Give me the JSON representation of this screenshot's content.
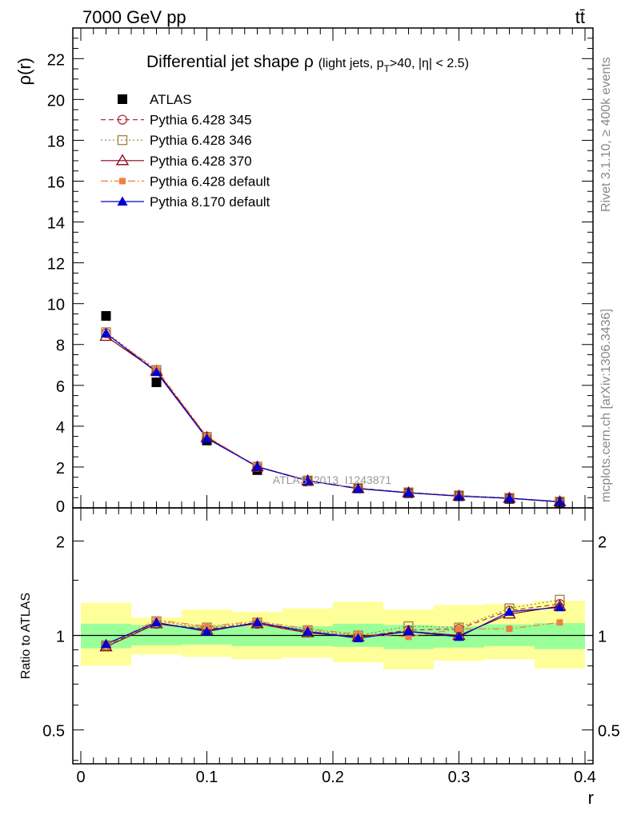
{
  "header": {
    "left": "7000 GeV pp",
    "right": "tt̄"
  },
  "side_labels": {
    "rivet": "Rivet 3.1.10, ≥ 400k events",
    "mcplots": "mcplots.cern.ch [arXiv:1306.3436]"
  },
  "watermark": "ATLAS_2013_I1243871",
  "title": {
    "main": "Differential jet shape ρ",
    "sub_pre": "(light jets, p",
    "sub_T": "T",
    "sub_post": ">40, |η| < 2.5)"
  },
  "colors": {
    "data": "#000000",
    "p345": "#b03040",
    "p346": "#a08040",
    "p370": "#8b0010",
    "p6def": "#f08040",
    "p8def": "#0000d0",
    "band_inner": "#99ff99",
    "band_outer": "#ffff99"
  },
  "chart_data": [
    {
      "type": "line",
      "panel": "main",
      "ylabel": "ρ(r)",
      "xlabel": "",
      "xlim": [
        0,
        0.4
      ],
      "ylim": [
        0,
        23.5
      ],
      "yticks": [
        0,
        2,
        4,
        6,
        8,
        10,
        12,
        14,
        16,
        18,
        20,
        22
      ],
      "ytick_labels": [
        "0",
        "2",
        "4",
        "6",
        "8",
        "10",
        "12",
        "14",
        "16",
        "18",
        "20",
        "22"
      ],
      "x": [
        0.02,
        0.06,
        0.1,
        0.14,
        0.18,
        0.22,
        0.26,
        0.3,
        0.34,
        0.38
      ],
      "legend_position": "top-left",
      "series": [
        {
          "name": "ATLAS",
          "key": "data",
          "marker": "square",
          "values": [
            9.4,
            6.15,
            3.3,
            1.85,
            1.3,
            0.95,
            0.72,
            0.57,
            0.44,
            0.25
          ]
        },
        {
          "name": "Pythia 6.428 345",
          "key": "p345",
          "marker": "circle-open",
          "dash": "6,4",
          "values": [
            8.55,
            6.7,
            3.45,
            2.0,
            1.33,
            0.97,
            0.75,
            0.6,
            0.48,
            0.3
          ]
        },
        {
          "name": "Pythia 6.428 346",
          "key": "p346",
          "marker": "square-open",
          "dash": "2,3",
          "values": [
            8.6,
            6.75,
            3.48,
            2.02,
            1.34,
            0.97,
            0.76,
            0.61,
            0.49,
            0.31
          ]
        },
        {
          "name": "Pythia 6.428 370",
          "key": "p370",
          "marker": "triangle-open",
          "dash": "",
          "values": [
            8.4,
            6.7,
            3.45,
            2.01,
            1.33,
            0.95,
            0.74,
            0.58,
            0.47,
            0.3
          ]
        },
        {
          "name": "Pythia 6.428 default",
          "key": "p6def",
          "marker": "square-small",
          "dash": "9,3,2,3",
          "values": [
            8.5,
            6.8,
            3.5,
            2.03,
            1.35,
            0.97,
            0.73,
            0.6,
            0.46,
            0.28
          ]
        },
        {
          "name": "Pythia 8.170 default",
          "key": "p8def",
          "marker": "triangle",
          "dash": "",
          "values": [
            8.55,
            6.65,
            3.4,
            2.02,
            1.33,
            0.94,
            0.74,
            0.57,
            0.47,
            0.3
          ]
        }
      ]
    },
    {
      "type": "line",
      "panel": "ratio",
      "ylabel": "Ratio to ATLAS",
      "xlabel": "r",
      "xlim": [
        0,
        0.4
      ],
      "ylim": [
        0.39,
        2.55
      ],
      "scale": "log",
      "xticks": [
        0,
        0.1,
        0.2,
        0.3,
        0.4
      ],
      "xtick_labels": [
        "0",
        "0.1",
        "0.2",
        "0.3",
        "0.4"
      ],
      "yticks": [
        0.5,
        1,
        2
      ],
      "ytick_labels": [
        "0.5",
        "1",
        "2"
      ],
      "x": [
        0.02,
        0.06,
        0.1,
        0.14,
        0.18,
        0.22,
        0.26,
        0.3,
        0.34,
        0.38
      ],
      "band_edges": [
        0.0,
        0.04,
        0.08,
        0.12,
        0.16,
        0.2,
        0.24,
        0.28,
        0.32,
        0.36,
        0.4
      ],
      "band_inner_low": [
        0.91,
        0.93,
        0.935,
        0.925,
        0.925,
        0.92,
        0.905,
        0.915,
        0.925,
        0.905
      ],
      "band_inner_high": [
        1.09,
        1.08,
        1.075,
        1.07,
        1.07,
        1.09,
        1.08,
        1.07,
        1.085,
        1.095
      ],
      "band_outer_low": [
        0.8,
        0.87,
        0.855,
        0.84,
        0.85,
        0.82,
        0.78,
        0.83,
        0.84,
        0.785
      ],
      "band_outer_high": [
        1.27,
        1.14,
        1.21,
        1.19,
        1.22,
        1.28,
        1.21,
        1.25,
        1.26,
        1.29
      ],
      "series": [
        {
          "name": "Pythia 6.428 345",
          "key": "p345",
          "marker": "circle-open",
          "dash": "6,4",
          "values": [
            0.93,
            1.09,
            1.05,
            1.09,
            1.03,
            0.99,
            1.04,
            1.05,
            1.2,
            1.26
          ]
        },
        {
          "name": "Pythia 6.428 346",
          "key": "p346",
          "marker": "square-open",
          "dash": "2,3",
          "values": [
            0.93,
            1.11,
            1.06,
            1.1,
            1.04,
            1.0,
            1.07,
            1.06,
            1.22,
            1.3
          ]
        },
        {
          "name": "Pythia 6.428 370",
          "key": "p370",
          "marker": "triangle-open",
          "dash": "",
          "values": [
            0.92,
            1.09,
            1.04,
            1.09,
            1.02,
            0.99,
            1.03,
            1.0,
            1.17,
            1.24
          ]
        },
        {
          "name": "Pythia 6.428 default",
          "key": "p6def",
          "marker": "square-small",
          "dash": "9,3,2,3",
          "values": [
            0.93,
            1.12,
            1.07,
            1.11,
            1.05,
            1.01,
            0.99,
            1.05,
            1.05,
            1.1
          ]
        },
        {
          "name": "Pythia 8.170 default",
          "key": "p8def",
          "marker": "triangle",
          "dash": "",
          "values": [
            0.94,
            1.1,
            1.03,
            1.1,
            1.03,
            0.98,
            1.03,
            0.99,
            1.19,
            1.23
          ]
        }
      ]
    }
  ]
}
